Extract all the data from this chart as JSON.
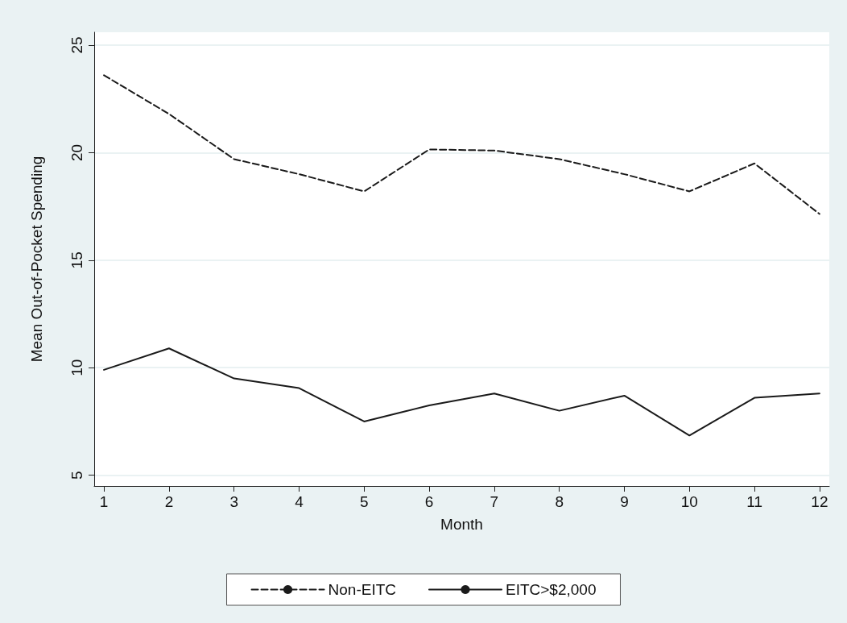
{
  "chart_data": {
    "type": "line",
    "xlabel": "Month",
    "ylabel": "Mean Out-of-Pocket Spending",
    "x": [
      1,
      2,
      3,
      4,
      5,
      6,
      7,
      8,
      9,
      10,
      11,
      12
    ],
    "series": [
      {
        "name": "Non-EITC",
        "color": "#1a1a1a",
        "line_style": "dashed",
        "values": [
          23.6,
          21.8,
          19.7,
          19.0,
          18.2,
          20.15,
          20.1,
          19.7,
          19.0,
          18.2,
          19.5,
          17.15
        ]
      },
      {
        "name": "EITC>$2,000",
        "color": "#1a1a1a",
        "line_style": "solid",
        "values": [
          9.9,
          10.9,
          9.5,
          9.05,
          7.5,
          8.25,
          8.8,
          8.0,
          8.7,
          6.85,
          8.6,
          8.8
        ]
      }
    ],
    "xlim": [
      0.85,
      12.15
    ],
    "xticks": [
      1,
      2,
      3,
      4,
      5,
      6,
      7,
      8,
      9,
      10,
      11,
      12
    ],
    "ylim": [
      4.5,
      25.6
    ],
    "yticks": [
      5,
      10,
      15,
      20,
      25
    ],
    "grid": "y",
    "legend": "bottom",
    "marker": "none"
  }
}
